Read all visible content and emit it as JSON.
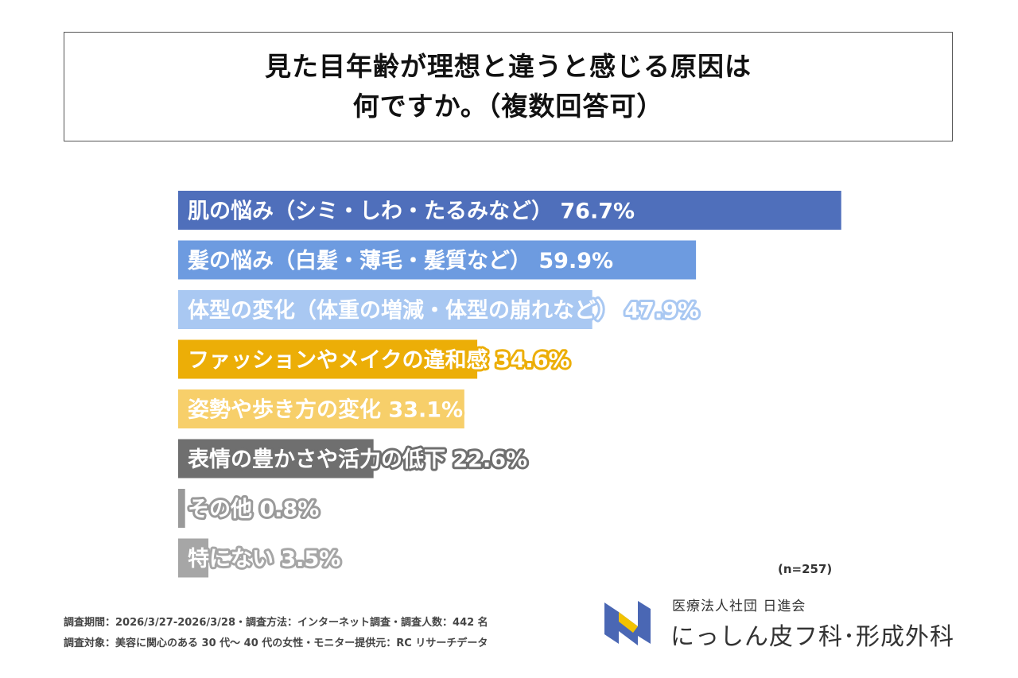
{
  "title": {
    "line1": "見た目年齢が理想と違うと感じる原因は",
    "line2": "何ですか。（複数回答可）"
  },
  "chart_data": {
    "type": "bar",
    "orientation": "horizontal",
    "categories": [
      "肌の悩み（シミ・しわ・たるみなど）",
      "髪の悩み（白髪・薄毛・髪質など）",
      "体型の変化（体重の増減・体型の崩れなど）",
      "ファッションやメイクの違和感",
      "姿勢や歩き方の変化",
      "表情の豊かさや活力の低下",
      "その他",
      "特にない"
    ],
    "values": [
      76.7,
      59.9,
      47.9,
      34.6,
      33.1,
      22.6,
      0.8,
      3.5
    ],
    "value_labels": [
      "76.7%",
      "59.9%",
      "47.9%",
      "34.6%",
      "33.1%",
      "22.6%",
      "0.8%",
      "3.5%"
    ],
    "colors": [
      "#4f6fbb",
      "#6d9be0",
      "#a9c8f2",
      "#ecae07",
      "#f7cf6a",
      "#6f6f6f",
      "#9a9a9a",
      "#a6a6a6"
    ],
    "label_text_colors": [
      "#ffffff",
      "#ffffff",
      "#ffffff",
      "#ffffff",
      "#ffffff",
      "#ffffff",
      "#ffffff",
      "#ffffff"
    ],
    "label_outline_colors": [
      "#4f6fbb",
      "#6d9be0",
      "#a9c8f2",
      "#ecae07",
      "#f7cf6a",
      "#6f6f6f",
      "#9a9a9a",
      "#a6a6a6"
    ],
    "xlim": [
      0,
      100
    ],
    "grid": false
  },
  "sample_note": "(n=257)",
  "footnotes": {
    "line1": "調査期間：2026/3/27-2026/3/28・調査方法：インターネット調査・調査人数：442 名",
    "line2": "調査対象：美容に関心のある 30 代～ 40 代の女性・モニター提供元：RC リサーチデータ"
  },
  "logo": {
    "sub": "医療法人社団 日進会",
    "main": "にっしん皮フ科･形成外科",
    "colors": {
      "blue": "#4a67b4",
      "yellow": "#f2c200"
    },
    "icon": "n-monogram-logo"
  }
}
